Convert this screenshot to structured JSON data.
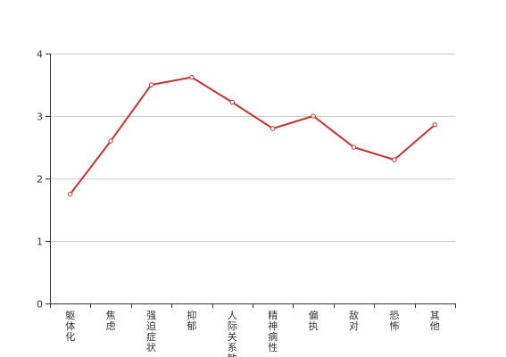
{
  "chart_data": {
    "type": "line",
    "title": "",
    "xlabel": "",
    "ylabel": "",
    "ylim": [
      0,
      4
    ],
    "y_ticks": [
      0,
      1,
      2,
      3,
      4
    ],
    "grid": true,
    "categories": [
      "躯体化",
      "焦虑",
      "强迫症状",
      "抑郁",
      "人际关系敏感",
      "精神病性",
      "偏执",
      "敌对",
      "恐怖",
      "其他"
    ],
    "series": [
      {
        "values": [
          1.75,
          2.6,
          3.5,
          3.62,
          3.22,
          2.8,
          3.0,
          2.5,
          2.3,
          2.86
        ],
        "color": "#c23531"
      }
    ]
  }
}
